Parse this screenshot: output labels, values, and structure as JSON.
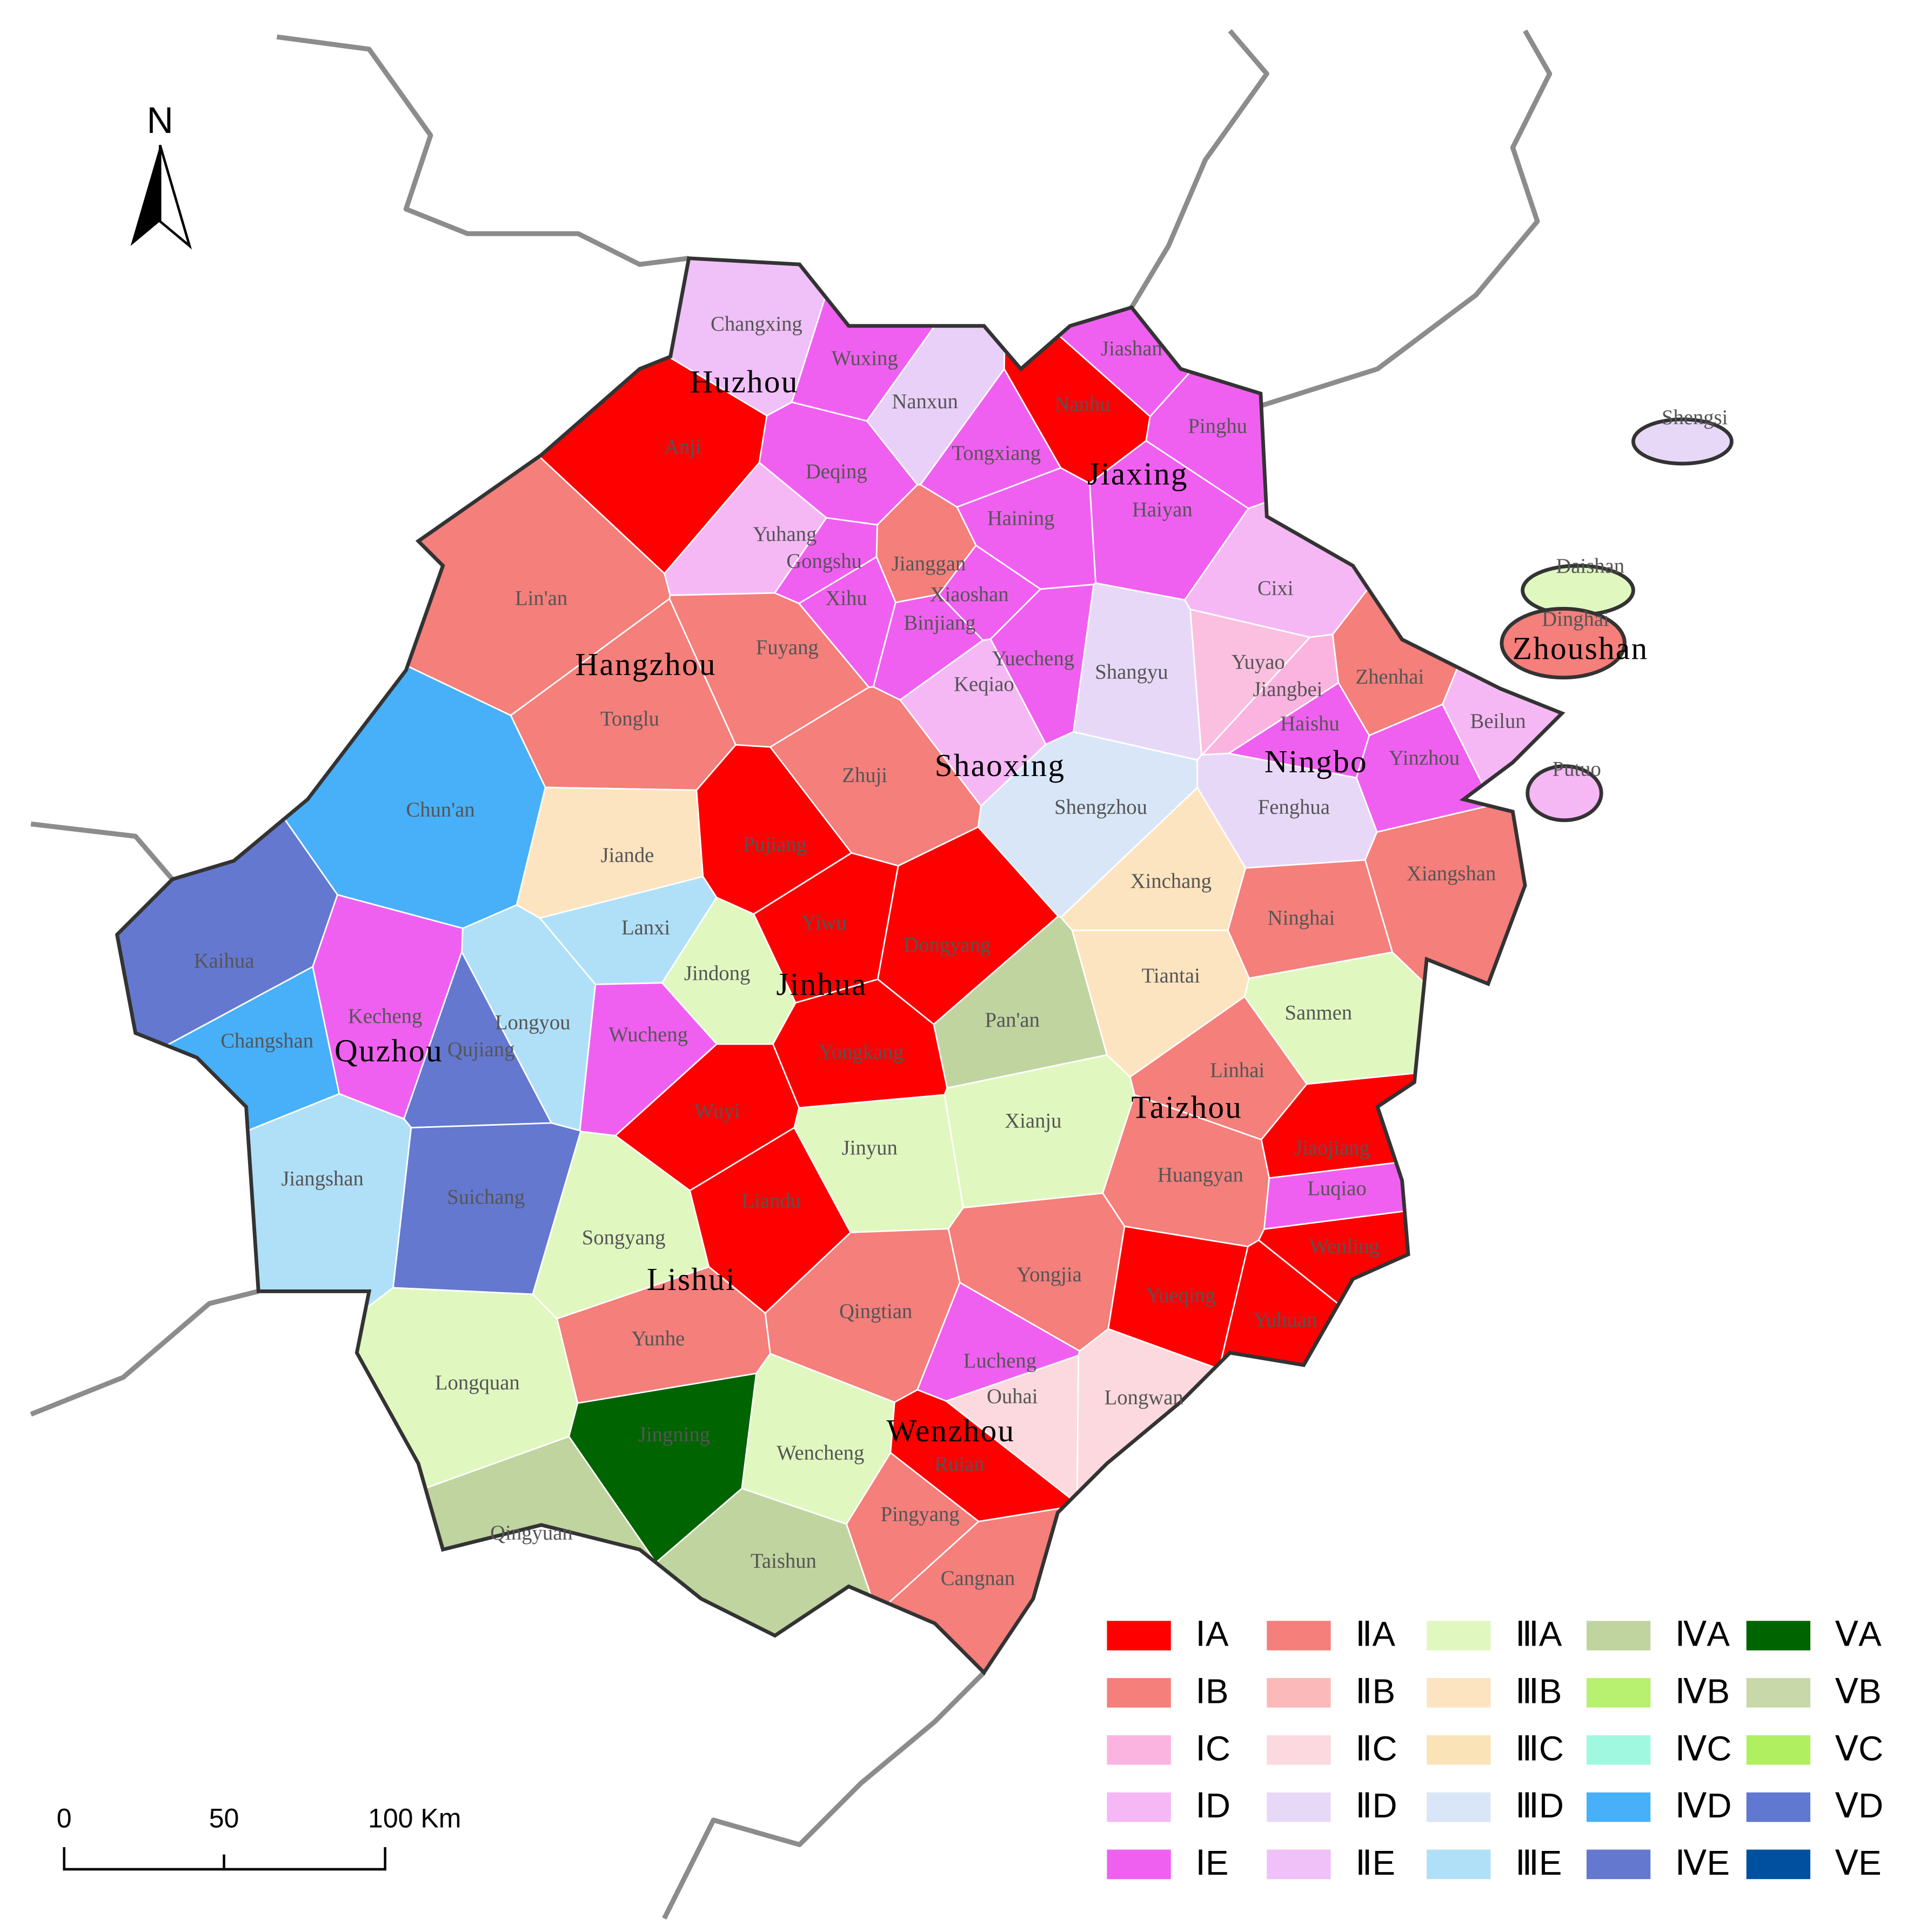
{
  "north": "N",
  "scale": {
    "labels": [
      "0",
      "50",
      "100 Km"
    ]
  },
  "cities": [
    "Huzhou",
    "Jiaxing",
    "Hangzhou",
    "Shaoxing",
    "Ningbo",
    "Zhoushan",
    "Jinhua",
    "Quzhou",
    "Taizhou",
    "Lishui",
    "Wenzhou"
  ],
  "counties": [
    {
      "label": "Changxing",
      "color": "#f0c0f8"
    },
    {
      "label": "Wuxing",
      "color": "#f060f0"
    },
    {
      "label": "Nanxun",
      "color": "#e8d0f8"
    },
    {
      "label": "Anji",
      "color": "#ff0000"
    },
    {
      "label": "Deqing",
      "color": "#f060f0"
    },
    {
      "label": "Jiashan",
      "color": "#f060f0"
    },
    {
      "label": "Nanhu",
      "color": "#ff0000"
    },
    {
      "label": "Pinghu",
      "color": "#f060f0"
    },
    {
      "label": "Tongxiang",
      "color": "#f060f0"
    },
    {
      "label": "Haiyan",
      "color": "#f060f0"
    },
    {
      "label": "Haining",
      "color": "#f060f0"
    },
    {
      "label": "Yuhang",
      "color": "#f5b8f5"
    },
    {
      "label": "Gongshu",
      "color": "#f060f0"
    },
    {
      "label": "Jianggan",
      "color": "#f47f7b"
    },
    {
      "label": "Xihu",
      "color": "#f060f0"
    },
    {
      "label": "Binjiang",
      "color": "#f060f0"
    },
    {
      "label": "Xiaoshan",
      "color": "#f060f0"
    },
    {
      "label": "Lin'an",
      "color": "#f47f7b"
    },
    {
      "label": "Fuyang",
      "color": "#f47f7b"
    },
    {
      "label": "Tonglu",
      "color": "#f47f7b"
    },
    {
      "label": "Chun'an",
      "color": "#48b0f8"
    },
    {
      "label": "Jiande",
      "color": "#fde4c0"
    },
    {
      "label": "Keqiao",
      "color": "#f5b8f5"
    },
    {
      "label": "Yuecheng",
      "color": "#f060f0"
    },
    {
      "label": "Shangyu",
      "color": "#e8d8f8"
    },
    {
      "label": "Zhuji",
      "color": "#f47f7b"
    },
    {
      "label": "Shengzhou",
      "color": "#d8e6f8"
    },
    {
      "label": "Cixi",
      "color": "#f5b8f5"
    },
    {
      "label": "Yuyao",
      "color": "#fbc0e0"
    },
    {
      "label": "Jiangbei",
      "color": "#fbb4e0"
    },
    {
      "label": "Zhenhai",
      "color": "#f47f7b"
    },
    {
      "label": "Haishu",
      "color": "#f060f0"
    },
    {
      "label": "Beilun",
      "color": "#f5b8f5"
    },
    {
      "label": "Yinzhou",
      "color": "#f060f0"
    },
    {
      "label": "Fenghua",
      "color": "#e8d8f8"
    },
    {
      "label": "Xinchang",
      "color": "#fde4c0"
    },
    {
      "label": "Xiangshan",
      "color": "#f47f7b"
    },
    {
      "label": "Ninghai",
      "color": "#f47f7b"
    },
    {
      "label": "Tiantai",
      "color": "#fde4c0"
    },
    {
      "label": "Sanmen",
      "color": "#e0f8c0"
    },
    {
      "label": "Pujiang",
      "color": "#ff0000"
    },
    {
      "label": "Lanxi",
      "color": "#b0e0f8"
    },
    {
      "label": "Yiwu",
      "color": "#ff0000"
    },
    {
      "label": "Dongyang",
      "color": "#ff0000"
    },
    {
      "label": "Jindong",
      "color": "#e0f8c0"
    },
    {
      "label": "Wucheng",
      "color": "#f060f0"
    },
    {
      "label": "Yongkang",
      "color": "#ff0000"
    },
    {
      "label": "Pan'an",
      "color": "#c0d4a0"
    },
    {
      "label": "Kaihua",
      "color": "#6478d0"
    },
    {
      "label": "Changshan",
      "color": "#48b0f8"
    },
    {
      "label": "Kecheng",
      "color": "#f060f0"
    },
    {
      "label": "Qujiang",
      "color": "#6478d0"
    },
    {
      "label": "Longyou",
      "color": "#b0e0f8"
    },
    {
      "label": "Jiangshan",
      "color": "#b0e0f8"
    },
    {
      "label": "Wuyi",
      "color": "#ff0000"
    },
    {
      "label": "Jinyun",
      "color": "#e0f8c0"
    },
    {
      "label": "Xianju",
      "color": "#e0f8c0"
    },
    {
      "label": "Linhai",
      "color": "#f47f7b"
    },
    {
      "label": "Jiaojiang",
      "color": "#ff0000"
    },
    {
      "label": "Huangyan",
      "color": "#f47f7b"
    },
    {
      "label": "Luqiao",
      "color": "#f060f0"
    },
    {
      "label": "Wenling",
      "color": "#ff0000"
    },
    {
      "label": "Yuhuan",
      "color": "#ff0000"
    },
    {
      "label": "Suichang",
      "color": "#6478d0"
    },
    {
      "label": "Songyang",
      "color": "#e0f8c0"
    },
    {
      "label": "Liandu",
      "color": "#ff0000"
    },
    {
      "label": "Yongjia",
      "color": "#f47f7b"
    },
    {
      "label": "Yueqing",
      "color": "#ff0000"
    },
    {
      "label": "Qingtian",
      "color": "#f47f7b"
    },
    {
      "label": "Yunhe",
      "color": "#f47f7b"
    },
    {
      "label": "Longquan",
      "color": "#e0f8c0"
    },
    {
      "label": "Lucheng",
      "color": "#f060f0"
    },
    {
      "label": "Ouhai",
      "color": "#fbd9de"
    },
    {
      "label": "Longwan",
      "color": "#fbd9de"
    },
    {
      "label": "Jingning",
      "color": "#006400"
    },
    {
      "label": "Wencheng",
      "color": "#e0f8c0"
    },
    {
      "label": "Ruian",
      "color": "#ff0000"
    },
    {
      "label": "Pingyang",
      "color": "#f47f7b"
    },
    {
      "label": "Taishun",
      "color": "#c0d4a0"
    },
    {
      "label": "Qingyuan",
      "color": "#c0d4a0"
    },
    {
      "label": "Cangnan",
      "color": "#f47f7b"
    },
    {
      "label": "Shengsi",
      "color": "#e8d8f8"
    },
    {
      "label": "Daishan",
      "color": "#e0f8c0"
    },
    {
      "label": "Dinghai",
      "color": "#f47f7b"
    },
    {
      "label": "Putuo",
      "color": "#f5b8f5"
    }
  ],
  "legend": [
    {
      "label": "ⅠA",
      "color": "#ff0000"
    },
    {
      "label": "ⅠB",
      "color": "#f47f7b"
    },
    {
      "label": "ⅠC",
      "color": "#fbb4e0"
    },
    {
      "label": "ⅠD",
      "color": "#f5b8f5"
    },
    {
      "label": "ⅠE",
      "color": "#f060f0"
    },
    {
      "label": "ⅡA",
      "color": "#f47f7b"
    },
    {
      "label": "ⅡB",
      "color": "#fbb9b9"
    },
    {
      "label": "ⅡC",
      "color": "#fbd9de"
    },
    {
      "label": "ⅡD",
      "color": "#e8d8f8"
    },
    {
      "label": "ⅡE",
      "color": "#f0c0f8"
    },
    {
      "label": "ⅢA",
      "color": "#e0f8c0"
    },
    {
      "label": "ⅢB",
      "color": "#fde4c0"
    },
    {
      "label": "ⅢC",
      "color": "#fbe3b8"
    },
    {
      "label": "ⅢD",
      "color": "#d8e6f8"
    },
    {
      "label": "ⅢE",
      "color": "#b0e0f8"
    },
    {
      "label": "ⅣA",
      "color": "#c0d4a0"
    },
    {
      "label": "ⅣB",
      "color": "#b8f070"
    },
    {
      "label": "ⅣC",
      "color": "#a0f8e0"
    },
    {
      "label": "ⅣD",
      "color": "#48b0f8"
    },
    {
      "label": "ⅣE",
      "color": "#6478d0"
    },
    {
      "label": "ⅤA",
      "color": "#006400"
    },
    {
      "label": "ⅤB",
      "color": "#c8d8a8"
    },
    {
      "label": "ⅤC",
      "color": "#b0f060"
    },
    {
      "label": "ⅤD",
      "color": "#6078d0"
    },
    {
      "label": "ⅤE",
      "color": "#0050a0"
    }
  ]
}
